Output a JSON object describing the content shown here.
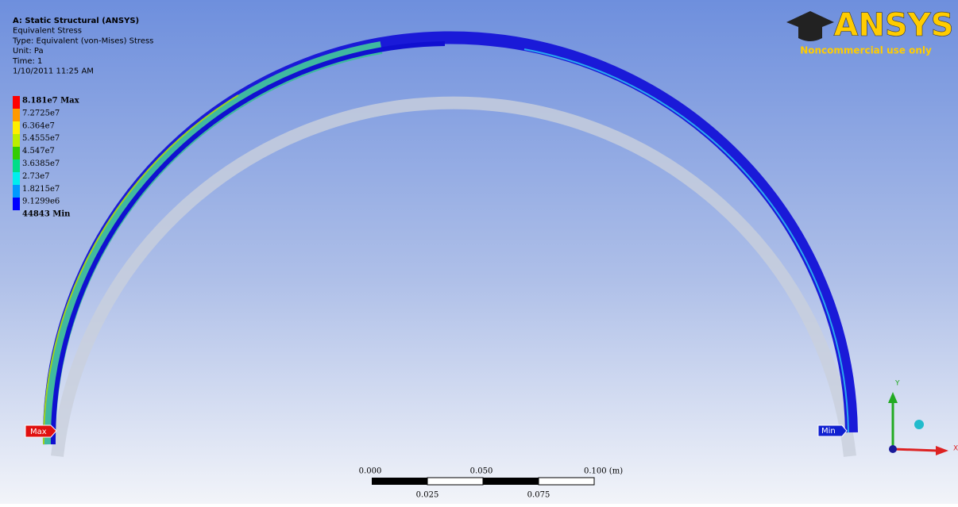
{
  "header": {
    "lines": [
      "A: Static Structural (ANSYS)",
      "Equivalent Stress",
      "Type: Equivalent (von-Mises) Stress",
      "Unit: Pa",
      "Time: 1",
      "1/10/2011 11:25 AM"
    ]
  },
  "legend": {
    "items": [
      "8.181e7 Max",
      "7.2725e7",
      "6.364e7",
      "5.4555e7",
      "4.547e7",
      "3.6385e7",
      "2.73e7",
      "1.8215e7",
      "9.1299e6",
      "44843 Min"
    ]
  },
  "logo": {
    "name": "ANSYS",
    "note": "Noncommercial use only"
  },
  "probes": {
    "max": "Max",
    "min": "Min"
  },
  "scale_bar": {
    "top_labels": [
      "0.000",
      "0.050",
      "0.100 (m)"
    ],
    "bottom_labels": [
      "0.025",
      "0.075"
    ]
  },
  "triad": {
    "y": "Y",
    "x": "X"
  }
}
